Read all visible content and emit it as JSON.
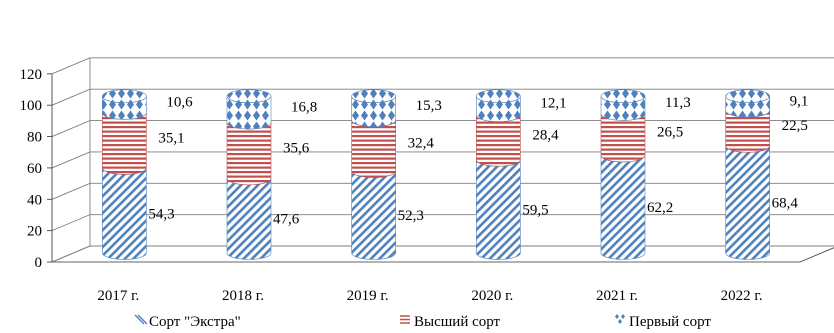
{
  "chart_data": {
    "type": "bar",
    "stacked": true,
    "style": "3d-cylinder",
    "categories": [
      "2017 г.",
      "2018 г.",
      "2019 г.",
      "2020 г.",
      "2021 г.",
      "2022 г."
    ],
    "series": [
      {
        "name": "Сорт \"Экстра\"",
        "values": [
          54.3,
          47.6,
          52.3,
          59.5,
          62.2,
          68.4
        ],
        "labels": [
          "54,3",
          "47,6",
          "52,3",
          "59,5",
          "62,2",
          "68,4"
        ],
        "color": "#4f81bd",
        "pattern": "diagonal-stripes"
      },
      {
        "name": "Высший сорт",
        "values": [
          35.1,
          35.6,
          32.4,
          28.4,
          26.5,
          22.5
        ],
        "labels": [
          "35,1",
          "35,6",
          "32,4",
          "28,4",
          "26,5",
          "22,5"
        ],
        "color": "#c0504d",
        "pattern": "horizontal-stripes"
      },
      {
        "name": "Первый сорт",
        "values": [
          10.6,
          16.8,
          15.3,
          12.1,
          11.3,
          9.1
        ],
        "labels": [
          "10,6",
          "16,8",
          "15,3",
          "12,1",
          "11,3",
          "9,1"
        ],
        "color": "#4f81bd",
        "pattern": "diamonds"
      }
    ],
    "yticks": [
      "0",
      "20",
      "40",
      "60",
      "80",
      "100",
      "120"
    ],
    "ylim": [
      0,
      120
    ],
    "grid": true,
    "legend": "bottom",
    "title": "",
    "xlabel": "",
    "ylabel": ""
  }
}
